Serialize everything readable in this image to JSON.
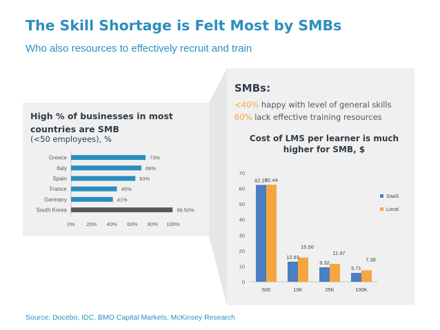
{
  "header": {
    "title": "The Skill Shortage is Felt Most by SMBs",
    "subtitle": "Who also resources to effectively recruit and train"
  },
  "left_panel": {
    "heading": "High % of businesses in most countries are SMB",
    "subheading": "(<50 employees), %"
  },
  "right_panel": {
    "title": "SMBs:",
    "line1_highlight": "<40%",
    "line1_text": " happy with level of general skills",
    "line2_highlight": "60%",
    "line2_text": " lack effective training resources",
    "highlight_color": "#f5a641"
  },
  "footer": {
    "source": "Source: Docebo, IDC, BMO Capital Markets, McKinsey Research"
  },
  "colors": {
    "accent": "#2a8fbd",
    "blue_series": "#4a7fc1",
    "orange_series": "#f5a641",
    "bar_gray": "#595959",
    "panel_bg": "#f0f0f0"
  },
  "chart_data": [
    {
      "type": "bar",
      "orientation": "horizontal",
      "categories": [
        "Greece",
        "Italy",
        "Spain",
        "France",
        "Germany",
        "South Korea"
      ],
      "values": [
        73,
        69,
        63,
        45,
        41,
        99.5
      ],
      "value_labels": [
        "73%",
        "69%",
        "63%",
        "45%",
        "41%",
        "99.50%"
      ],
      "xlim": [
        0,
        100
      ],
      "xticks": [
        0,
        20,
        40,
        60,
        80,
        100
      ],
      "xtick_labels": [
        "0%",
        "20%",
        "40%",
        "60%",
        "80%",
        "100%"
      ],
      "highlight_index": 5
    },
    {
      "type": "bar",
      "orientation": "vertical",
      "title": "Cost of LMS per learner is much higher for SMB, $",
      "categories": [
        "500",
        "10K",
        "25K",
        "100K"
      ],
      "series": [
        {
          "name": "SaaS",
          "values": [
            62.27,
            12.93,
            9.32,
            5.71
          ],
          "labels": [
            "62.27",
            "12.93",
            "9.32",
            "5.71"
          ]
        },
        {
          "name": "Local",
          "values": [
            62.44,
            15.56,
            11.47,
            7.38
          ],
          "labels": [
            "62.44",
            "15.56",
            "11.47",
            "7.38"
          ]
        }
      ],
      "ylim": [
        0,
        70
      ],
      "yticks": [
        0,
        10,
        20,
        30,
        40,
        50,
        60,
        70
      ],
      "legend": "right"
    }
  ]
}
